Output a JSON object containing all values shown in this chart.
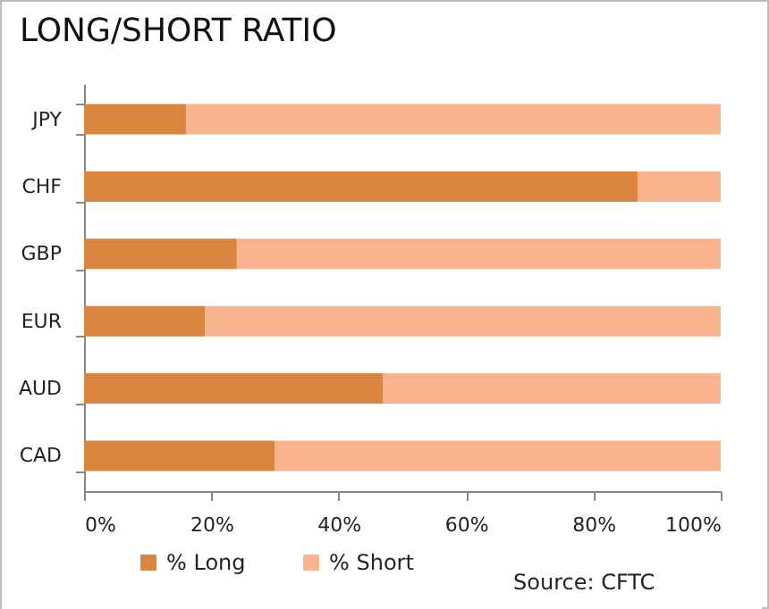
{
  "chart_data": {
    "type": "bar",
    "orientation": "horizontal",
    "stacked": true,
    "title": "LONG/SHORT RATIO",
    "categories": [
      "JPY",
      "CHF",
      "GBP",
      "EUR",
      "AUD",
      "CAD"
    ],
    "series": [
      {
        "name": "% Long",
        "color": "#d9843f",
        "values": [
          16,
          87,
          24,
          19,
          47,
          30
        ]
      },
      {
        "name": "% Short",
        "color": "#f7b48f",
        "values": [
          84,
          13,
          76,
          81,
          53,
          70
        ]
      }
    ],
    "xlim": [
      0,
      100
    ],
    "xticks": [
      {
        "value": 0,
        "label": "0%"
      },
      {
        "value": 20,
        "label": "20%"
      },
      {
        "value": 40,
        "label": "40%"
      },
      {
        "value": 60,
        "label": "60%"
      },
      {
        "value": 80,
        "label": "80%"
      },
      {
        "value": 100,
        "label": "100%"
      }
    ],
    "grid": false,
    "legend": "bottom left",
    "annotations": [
      "Source: CFTC"
    ]
  }
}
